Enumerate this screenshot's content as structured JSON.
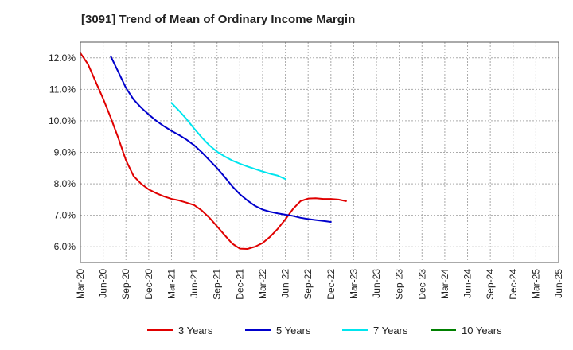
{
  "chart_data": {
    "type": "line",
    "title": "[3091]  Trend of Mean of Ordinary Income Margin",
    "xlabel": "",
    "ylabel": "",
    "x_ticks": [
      "Mar-20",
      "Jun-20",
      "Sep-20",
      "Dec-20",
      "Mar-21",
      "Jun-21",
      "Sep-21",
      "Dec-21",
      "Mar-22",
      "Jun-22",
      "Sep-22",
      "Dec-22",
      "Mar-23",
      "Jun-23",
      "Sep-23",
      "Dec-23",
      "Mar-24",
      "Jun-24",
      "Sep-24",
      "Dec-24",
      "Mar-25",
      "Jun-25"
    ],
    "y_ticks": [
      "6.0%",
      "7.0%",
      "8.0%",
      "9.0%",
      "10.0%",
      "11.0%",
      "12.0%"
    ],
    "ylim": [
      5.5,
      12.5
    ],
    "grid": true,
    "legend_position": "bottom",
    "series": [
      {
        "name": "3 Years",
        "color": "#e00000",
        "start_index": 0,
        "values": [
          12.15,
          11.8,
          11.25,
          10.7,
          10.1,
          9.45,
          8.75,
          8.25,
          8.0,
          7.82,
          7.7,
          7.6,
          7.52,
          7.47,
          7.4,
          7.32,
          7.15,
          6.92,
          6.65,
          6.37,
          6.1,
          5.94,
          5.93,
          6.0,
          6.12,
          6.32,
          6.57,
          6.87,
          7.2,
          7.45,
          7.53,
          7.54,
          7.52,
          7.52,
          7.5,
          7.45
        ]
      },
      {
        "name": "5 Years",
        "color": "#0000cc",
        "start_index": 4,
        "values": [
          12.05,
          11.55,
          11.05,
          10.68,
          10.42,
          10.2,
          10.0,
          9.83,
          9.68,
          9.55,
          9.4,
          9.22,
          9.0,
          8.75,
          8.5,
          8.22,
          7.92,
          7.67,
          7.47,
          7.3,
          7.18,
          7.11,
          7.06,
          7.02,
          6.98,
          6.92,
          6.88,
          6.85,
          6.82,
          6.79
        ]
      },
      {
        "name": "7 Years",
        "color": "#00e5ee",
        "start_index": 12,
        "values": [
          10.57,
          10.32,
          10.05,
          9.75,
          9.47,
          9.22,
          9.02,
          8.87,
          8.74,
          8.64,
          8.55,
          8.47,
          8.39,
          8.32,
          8.26,
          8.15
        ]
      },
      {
        "name": "10 Years",
        "color": "#008000",
        "start_index": 0,
        "values": []
      }
    ]
  }
}
